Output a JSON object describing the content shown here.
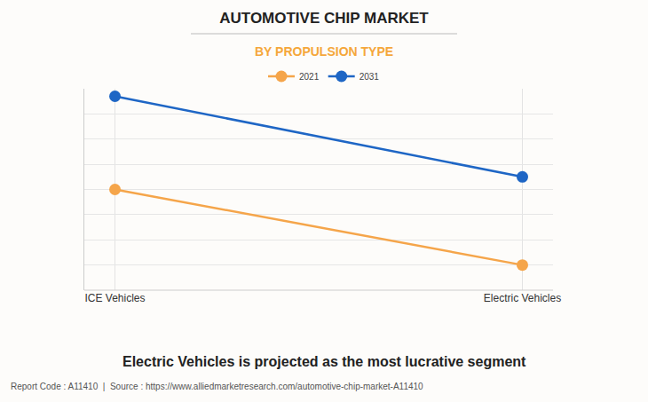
{
  "chart_data": {
    "type": "line",
    "title": "AUTOMOTIVE CHIP MARKET",
    "subtitle": "BY PROPULSION TYPE",
    "categories": [
      "ICE Vehicles",
      "Electric Vehicles"
    ],
    "series": [
      {
        "name": "2021",
        "color": "#f5a54a",
        "values": [
          4,
          1
        ]
      },
      {
        "name": "2031",
        "color": "#1e66c5",
        "values": [
          7.7,
          4.5
        ]
      }
    ],
    "ylim": [
      0,
      8
    ],
    "yticks": [
      0,
      1,
      2,
      3,
      4,
      5,
      6,
      7,
      8
    ],
    "grid": true,
    "tick_labels": "x",
    "legend": "top",
    "marker": "circle",
    "annotations": [
      "Electric Vehicles is projected as the most lucrative segment",
      "Report Code : A11410  |  Source : https://www.alliedmarketresearch.com/automotive-chip-market-A11410"
    ]
  }
}
